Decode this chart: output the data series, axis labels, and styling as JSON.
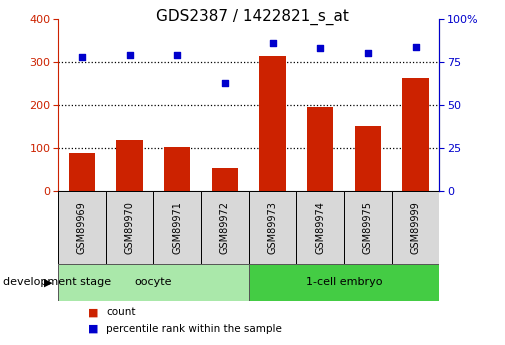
{
  "title": "GDS2387 / 1422821_s_at",
  "samples": [
    "GSM89969",
    "GSM89970",
    "GSM89971",
    "GSM89972",
    "GSM89973",
    "GSM89974",
    "GSM89975",
    "GSM89999"
  ],
  "counts": [
    90,
    120,
    103,
    55,
    315,
    197,
    152,
    262
  ],
  "percentiles": [
    78,
    79,
    79,
    63,
    86,
    83,
    80,
    84
  ],
  "bar_color": "#cc2200",
  "dot_color": "#0000cc",
  "left_ylim": [
    0,
    400
  ],
  "right_ylim": [
    0,
    100
  ],
  "left_yticks": [
    0,
    100,
    200,
    300,
    400
  ],
  "right_yticks": [
    0,
    25,
    50,
    75,
    100
  ],
  "right_yticklabels": [
    "0",
    "25",
    "50",
    "75",
    "100%"
  ],
  "groups": [
    {
      "label": "oocyte",
      "start": 0,
      "end": 3,
      "color": "#aae8aa"
    },
    {
      "label": "1-cell embryo",
      "start": 4,
      "end": 7,
      "color": "#44cc44"
    }
  ],
  "sample_box_color": "#d8d8d8",
  "xlabel_text": "development stage",
  "legend_count_label": "count",
  "legend_pct_label": "percentile rank within the sample",
  "title_fontsize": 11,
  "tick_fontsize": 8,
  "bar_width": 0.55
}
